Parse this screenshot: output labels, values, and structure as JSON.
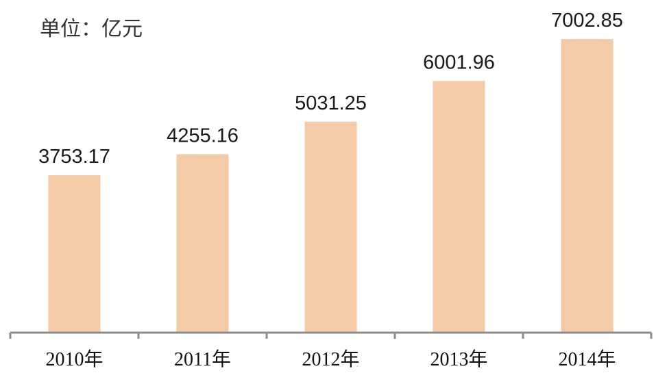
{
  "chart_data": {
    "type": "bar",
    "unit_label": "单位：亿元",
    "categories": [
      "2010年",
      "2011年",
      "2012年",
      "2013年",
      "2014年"
    ],
    "values": [
      3753.17,
      4255.16,
      5031.25,
      6001.96,
      7002.85
    ],
    "data_labels": [
      "3753.17",
      "4255.16",
      "5031.25",
      "6001.96",
      "7002.85"
    ],
    "title": "",
    "xlabel": "",
    "ylabel": "",
    "ylim": [
      0,
      7250
    ],
    "grid": false,
    "legend": "none",
    "colors": {
      "bar": "#F5CBA7",
      "axis": "#8c8c8c"
    }
  }
}
